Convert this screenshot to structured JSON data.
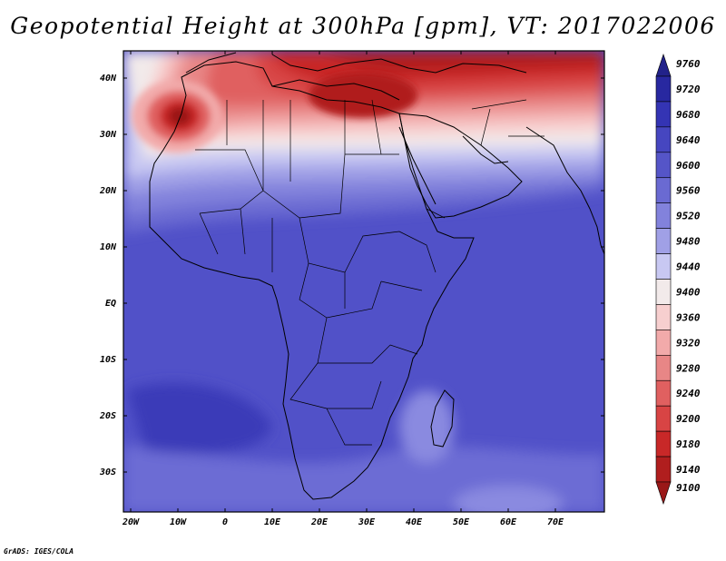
{
  "title": "Geopotential Height at 300hPa [gpm], VT: 2017022006",
  "credit": "GrADS: IGES/COLA",
  "map": {
    "lon_range": [
      -22,
      80
    ],
    "lat_range": [
      -37,
      45
    ],
    "background_color": "#5151c8",
    "lon_ticks": [
      "20W",
      "10W",
      "0",
      "10E",
      "20E",
      "30E",
      "40E",
      "50E",
      "60E",
      "70E"
    ],
    "lat_ticks": [
      "40N",
      "30N",
      "20N",
      "10N",
      "EQ",
      "10S",
      "20S",
      "30S"
    ]
  },
  "colorbar": {
    "levels": [
      "9760",
      "9720",
      "9680",
      "9640",
      "9600",
      "9560",
      "9520",
      "9480",
      "9440",
      "9400",
      "9360",
      "9320",
      "9280",
      "9240",
      "9200",
      "9180",
      "9140",
      "9100"
    ],
    "colors": [
      "#22228a",
      "#2828a0",
      "#3434b4",
      "#4646c0",
      "#5555c8",
      "#6a6ad2",
      "#8282dc",
      "#a0a0e6",
      "#c8c8f2",
      "#f2eaea",
      "#f7cfcf",
      "#f2aaaa",
      "#e88686",
      "#e06060",
      "#d84444",
      "#c82828",
      "#b01e1e",
      "#9a1818"
    ]
  }
}
